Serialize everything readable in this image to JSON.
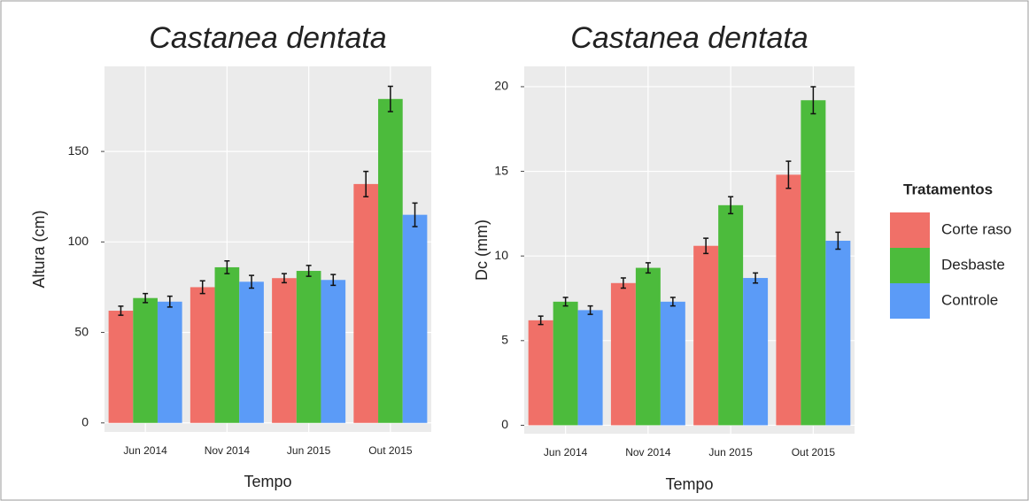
{
  "chart_data": [
    {
      "type": "bar",
      "title": "Castanea dentata",
      "x_label": "Tempo",
      "y_label": "Altura (cm)",
      "categories": [
        "Jun 2014",
        "Nov 2014",
        "Jun 2015",
        "Out 2015"
      ],
      "series": [
        {
          "color": "#f07068",
          "values": [
            62,
            75,
            80,
            132
          ],
          "errors": [
            2.5,
            3.5,
            2.5,
            7
          ]
        },
        {
          "color": "#4cbb3c",
          "values": [
            69,
            86,
            84,
            179
          ],
          "errors": [
            2.5,
            3.5,
            3,
            7
          ]
        },
        {
          "color": "#5b9bf7",
          "values": [
            67,
            78,
            79,
            115
          ],
          "errors": [
            3,
            3.5,
            3,
            6.5
          ]
        }
      ],
      "ylim": [
        -5,
        197
      ],
      "yticks": [
        0,
        50,
        100,
        150
      ],
      "grid": true
    },
    {
      "type": "bar",
      "title": "Castanea dentata",
      "x_label": "Tempo",
      "y_label": "Dc (mm)",
      "categories": [
        "Jun 2014",
        "Nov 2014",
        "Jun 2015",
        "Out 2015"
      ],
      "series": [
        {
          "name": "Corte raso",
          "color": "#f07068",
          "values": [
            6.2,
            8.4,
            10.6,
            14.8
          ],
          "errors": [
            0.25,
            0.3,
            0.45,
            0.8
          ]
        },
        {
          "name": "Desbaste",
          "color": "#4cbb3c",
          "values": [
            7.3,
            9.3,
            13.0,
            19.2
          ],
          "errors": [
            0.25,
            0.3,
            0.5,
            0.8
          ]
        },
        {
          "name": "Controle",
          "color": "#5b9bf7",
          "values": [
            6.8,
            7.3,
            8.7,
            10.9
          ],
          "errors": [
            0.25,
            0.25,
            0.3,
            0.5
          ]
        }
      ],
      "ylim": [
        -0.5,
        21.2
      ],
      "yticks": [
        0,
        5,
        10,
        15,
        20
      ],
      "grid": true,
      "legend_title": "Tratamentos",
      "legend": "right"
    }
  ]
}
